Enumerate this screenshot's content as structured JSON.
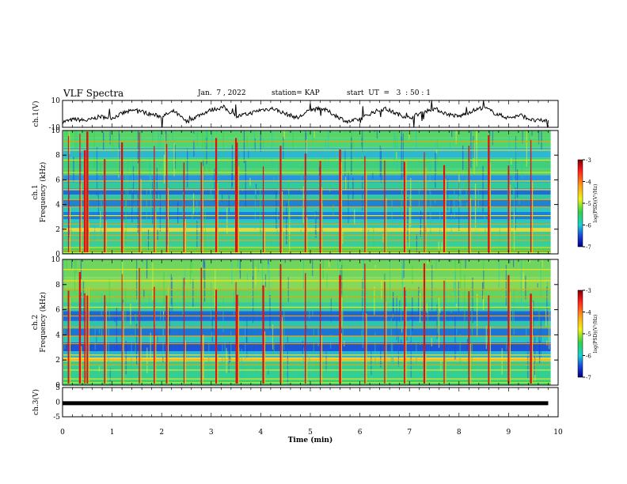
{
  "header": {
    "title": "VLF Spectra",
    "date": "Jan.  7 , 2022",
    "station": "station= KAP",
    "start": "start  UT  =   3  : 50 : 1"
  },
  "chart_data": [
    {
      "type": "line",
      "panel": "ch1-waveform",
      "ylabel": "ch.1(V)",
      "yticks": [
        "10",
        "-10"
      ],
      "ylim": [
        -10,
        10
      ],
      "x_range_min": [
        0,
        9.8
      ],
      "x": [
        0,
        0.25,
        0.5,
        0.75,
        1.0,
        1.25,
        1.5,
        1.75,
        2.0,
        2.25,
        2.5,
        2.75,
        3.0,
        3.25,
        3.5,
        3.75,
        4.0,
        4.25,
        4.5,
        4.75,
        5.0,
        5.25,
        5.5,
        5.75,
        6.0,
        6.25,
        6.5,
        6.75,
        7.0,
        7.25,
        7.5,
        7.75,
        8.0,
        8.25,
        8.5,
        8.75,
        9.0,
        9.25,
        9.5,
        9.8
      ],
      "values": [
        -6,
        -4,
        -5,
        -2,
        -3,
        1,
        3,
        0,
        -2,
        2,
        -6,
        -1,
        3,
        5,
        -2,
        0,
        3,
        4,
        0,
        -3,
        3,
        4,
        -1,
        -6,
        -4,
        1,
        4,
        0,
        -3,
        1,
        4,
        0,
        -2,
        2,
        5,
        0,
        -3,
        -1,
        -5,
        -5
      ]
    },
    {
      "type": "heatmap",
      "panel": "ch1-spectrogram",
      "ylabel": "ch.1\nFrequency (kHz)",
      "ylim": [
        0,
        10
      ],
      "yticks": [
        "0",
        "2",
        "4",
        "6",
        "8",
        "10"
      ],
      "colorbar": {
        "label": "log(PSD)(V²/Hz)",
        "range": [
          -7,
          -3
        ],
        "ticks": [
          "-3",
          "-4",
          "-5",
          "-6",
          "-7"
        ]
      },
      "bands": [
        {
          "from": 0.0,
          "to": 0.6,
          "color": "#2fd26a"
        },
        {
          "from": 0.6,
          "to": 1.8,
          "color": "#34cf9a"
        },
        {
          "from": 1.8,
          "to": 2.1,
          "color": "#e5d43a"
        },
        {
          "from": 2.1,
          "to": 2.8,
          "color": "#2ec8b8"
        },
        {
          "from": 2.8,
          "to": 3.4,
          "color": "#1a7fd8"
        },
        {
          "from": 3.4,
          "to": 3.8,
          "color": "#28c7c3"
        },
        {
          "from": 3.8,
          "to": 4.4,
          "color": "#1d84d4"
        },
        {
          "from": 4.4,
          "to": 4.8,
          "color": "#2fc9a8"
        },
        {
          "from": 4.8,
          "to": 5.3,
          "color": "#1b6fd5"
        },
        {
          "from": 5.3,
          "to": 5.8,
          "color": "#32cc9c"
        },
        {
          "from": 5.8,
          "to": 6.4,
          "color": "#2996dc"
        },
        {
          "from": 6.4,
          "to": 6.9,
          "color": "#4fd36a"
        },
        {
          "from": 6.9,
          "to": 7.8,
          "color": "#3fcf7f"
        },
        {
          "from": 7.8,
          "to": 8.6,
          "color": "#2bb8d0"
        },
        {
          "from": 8.6,
          "to": 9.4,
          "color": "#4fd674"
        },
        {
          "from": 9.4,
          "to": 10.0,
          "color": "#57d46a"
        }
      ],
      "lines_khz": [
        0.1,
        0.3,
        0.5,
        1.1,
        1.5,
        2.0,
        2.4,
        3.1,
        3.8,
        4.4,
        5.2,
        5.9,
        6.6,
        7.6,
        8.4,
        9.1
      ],
      "bursts_min": [
        0.12,
        0.35,
        0.45,
        0.5,
        0.85,
        1.2,
        1.55,
        1.85,
        2.1,
        2.45,
        2.8,
        3.1,
        3.5,
        3.52,
        4.05,
        4.4,
        4.9,
        5.2,
        5.6,
        6.1,
        6.5,
        6.9,
        7.3,
        7.7,
        8.2,
        8.6,
        9.0,
        9.45
      ]
    },
    {
      "type": "heatmap",
      "panel": "ch2-spectrogram",
      "ylabel": "ch.2\nFrequency (kHz)",
      "ylim": [
        0,
        10
      ],
      "yticks": [
        "0",
        "2",
        "4",
        "6",
        "8",
        "10"
      ],
      "colorbar": {
        "label": "log(PSD)(V²/Hz)",
        "range": [
          -7,
          -3
        ],
        "ticks": [
          "-3",
          "-4",
          "-5",
          "-6",
          "-7"
        ]
      },
      "bands": [
        {
          "from": 0.0,
          "to": 0.4,
          "color": "#2fd26a"
        },
        {
          "from": 0.4,
          "to": 1.9,
          "color": "#31cf94"
        },
        {
          "from": 1.9,
          "to": 2.2,
          "color": "#e6d43a"
        },
        {
          "from": 2.2,
          "to": 2.7,
          "color": "#2ab5cf"
        },
        {
          "from": 2.7,
          "to": 3.4,
          "color": "#1a56d6"
        },
        {
          "from": 3.4,
          "to": 3.9,
          "color": "#28c4bf"
        },
        {
          "from": 3.9,
          "to": 4.5,
          "color": "#1b74d6"
        },
        {
          "from": 4.5,
          "to": 5.1,
          "color": "#2fc4b0"
        },
        {
          "from": 5.1,
          "to": 5.9,
          "color": "#1c6ad6"
        },
        {
          "from": 5.9,
          "to": 6.6,
          "color": "#39cb95"
        },
        {
          "from": 6.6,
          "to": 7.6,
          "color": "#5fd568"
        },
        {
          "from": 7.6,
          "to": 8.6,
          "color": "#85d858"
        },
        {
          "from": 8.6,
          "to": 10.0,
          "color": "#6fd55e"
        }
      ],
      "lines_khz": [
        0.2,
        0.5,
        1.2,
        1.6,
        2.0,
        2.4,
        3.3,
        3.9,
        4.6,
        5.5,
        6.2,
        7.0,
        7.6,
        8.3,
        9.2
      ],
      "bursts_min": [
        0.12,
        0.35,
        0.45,
        0.5,
        0.85,
        1.2,
        1.55,
        1.85,
        2.1,
        2.45,
        2.8,
        3.1,
        3.5,
        3.52,
        4.05,
        4.4,
        4.9,
        5.2,
        5.6,
        6.1,
        6.5,
        6.9,
        7.3,
        7.7,
        8.2,
        8.6,
        9.0,
        9.45
      ]
    },
    {
      "type": "line",
      "panel": "ch3-waveform",
      "ylabel": "ch.3(V)",
      "yticks": [
        "5",
        "0",
        "-5"
      ],
      "ylim": [
        -5,
        5
      ],
      "x_range_min": [
        0,
        9.8
      ],
      "level": -0.5
    }
  ],
  "x_axis": {
    "label": "Time  (min)",
    "range": [
      0,
      10
    ],
    "ticks": [
      "0",
      "1",
      "2",
      "3",
      "4",
      "5",
      "6",
      "7",
      "8",
      "9",
      "10"
    ]
  }
}
